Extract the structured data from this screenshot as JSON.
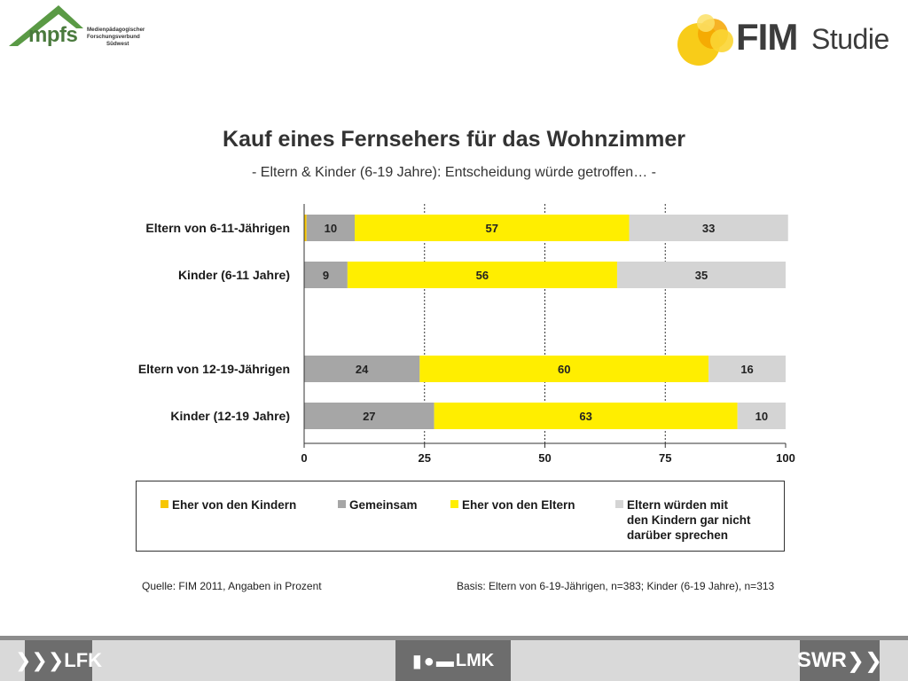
{
  "header": {
    "left_logo_text": "mpfs",
    "left_logo_subtitle": [
      "Medienpädagogischer",
      "Forschungsverbund",
      "Südwest"
    ],
    "right_logo_text": "FIM",
    "right_logo_text2": "Studie"
  },
  "chart_data": {
    "type": "bar",
    "orientation": "horizontal",
    "stacked": true,
    "title": "Kauf eines Fernsehers für das Wohnzimmer",
    "subtitle": "- Eltern & Kinder (6-19 Jahre): Entscheidung würde getroffen… -",
    "categories": [
      "Eltern von 6-11-Jährigen",
      "Kinder (6-11  Jahre)",
      "Eltern von 12-19-Jährigen",
      "Kinder (12-19  Jahre)"
    ],
    "series": [
      {
        "name": "Eher von den Kindern",
        "color": "#f7c600",
        "values": [
          0.5,
          0,
          0,
          0
        ],
        "labels": [
          "",
          "",
          "",
          ""
        ]
      },
      {
        "name": "Gemeinsam",
        "color": "#a6a6a6",
        "values": [
          10,
          9,
          24,
          27
        ],
        "labels": [
          "10",
          "9",
          "24",
          "27"
        ]
      },
      {
        "name": "Eher von den Eltern",
        "color": "#ffee00",
        "values": [
          57,
          56,
          60,
          63
        ],
        "labels": [
          "57",
          "56",
          "60",
          "63"
        ]
      },
      {
        "name": "Eltern würden  mit den Kindern  gar nicht darüber sprechen",
        "color": "#d4d4d4",
        "values": [
          33,
          35,
          16,
          10
        ],
        "labels": [
          "33",
          "35",
          "16",
          "10"
        ]
      }
    ],
    "xlim": [
      0,
      100
    ],
    "xticks": [
      "0",
      "25",
      "50",
      "75",
      "100"
    ],
    "grid": "vertical dashed",
    "legend_position": "bottom"
  },
  "legend": {
    "item1": "Eher von den Kindern",
    "item2": "Gemeinsam",
    "item3": "Eher von den Eltern",
    "item4_line1": "Eltern würden  mit",
    "item4_line2": "den Kindern  gar nicht",
    "item4_line3": "darüber sprechen"
  },
  "footer": {
    "source": "Quelle: FIM 2011,  Angaben in Prozent",
    "basis": "Basis: Eltern von 6-19-Jährigen, n=383; Kinder (6-19 Jahre), n=313",
    "logo_left": "LFK",
    "logo_center": "LMK",
    "logo_right": "SWR"
  }
}
